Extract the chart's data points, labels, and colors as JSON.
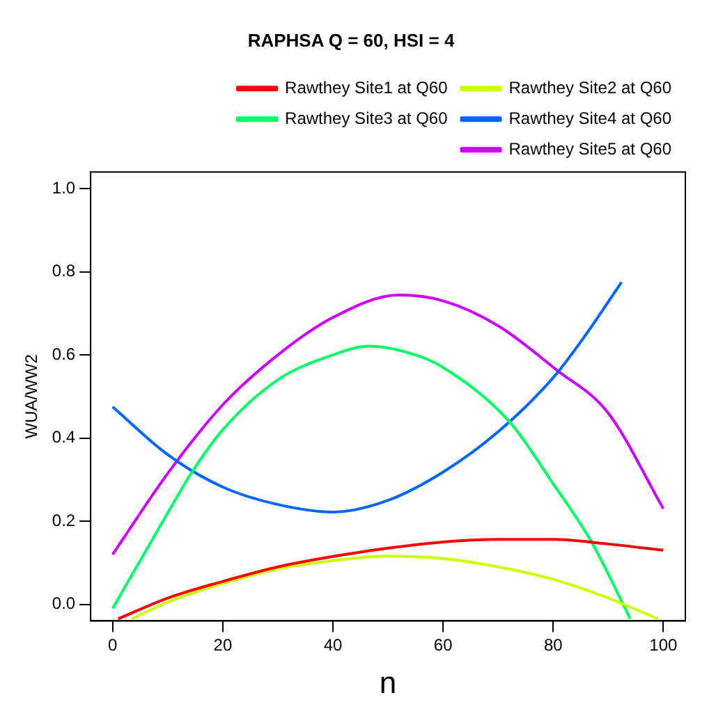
{
  "chart_data": {
    "type": "line",
    "title": "RAPHSA Q = 60, HSI = 4",
    "xlabel": "n",
    "ylabel": "WUA/WW2",
    "xlim": [
      -4,
      104
    ],
    "ylim": [
      -0.04,
      1.04
    ],
    "xticks": [
      0,
      20,
      40,
      60,
      80,
      100
    ],
    "yticks": [
      {
        "value": 0,
        "label": "0.0"
      },
      {
        "value": 0.2,
        "label": "0.2"
      },
      {
        "value": 0.4,
        "label": "0.4"
      },
      {
        "value": 0.6,
        "label": "0.6"
      },
      {
        "value": 0.8,
        "label": "0.8"
      },
      {
        "value": 1,
        "label": "1.0"
      }
    ],
    "grid": false,
    "legend": "top right",
    "marker": "none",
    "line_style": "solid",
    "series": [
      {
        "name": "Rawthey Site1 at Q60",
        "color": "#ff0000",
        "x": [
          1,
          10,
          20,
          30,
          40,
          50,
          60,
          70,
          80,
          90,
          100
        ],
        "values": [
          -0.035,
          0.015,
          0.055,
          0.09,
          0.115,
          0.135,
          0.15,
          0.156,
          0.156,
          0.145,
          0.13
        ]
      },
      {
        "name": "Rawthey Site2 at Q60",
        "color": "#ccff00",
        "x": [
          3.5,
          10,
          20,
          30,
          40,
          50,
          60,
          70,
          80,
          90,
          99
        ],
        "values": [
          -0.035,
          0.005,
          0.05,
          0.085,
          0.105,
          0.116,
          0.11,
          0.09,
          0.06,
          0.015,
          -0.035
        ]
      },
      {
        "name": "Rawthey Site3 at Q60",
        "color": "#00ff66",
        "x": [
          0,
          10,
          14.4,
          20,
          30,
          40,
          46.5,
          55,
          60,
          72,
          80,
          87,
          94
        ],
        "values": [
          -0.01,
          0.22,
          0.318,
          0.42,
          0.54,
          0.6,
          0.621,
          0.6,
          0.57,
          0.44,
          0.29,
          0.149,
          -0.035
        ]
      },
      {
        "name": "Rawthey Site4 at Q60",
        "color": "#0066ff",
        "x": [
          0,
          10,
          20,
          30,
          40,
          50,
          60,
          70,
          80,
          86,
          92.4
        ],
        "values": [
          0.475,
          0.36,
          0.282,
          0.24,
          0.222,
          0.25,
          0.318,
          0.415,
          0.545,
          0.65,
          0.775
        ]
      },
      {
        "name": "Rawthey Site5 at Q60",
        "color": "#cc00ff",
        "x": [
          0,
          10,
          20,
          30,
          40,
          52,
          60,
          70,
          80.6,
          90,
          100
        ],
        "values": [
          0.12,
          0.315,
          0.48,
          0.6,
          0.69,
          0.744,
          0.73,
          0.67,
          0.564,
          0.46,
          0.23
        ]
      }
    ]
  }
}
